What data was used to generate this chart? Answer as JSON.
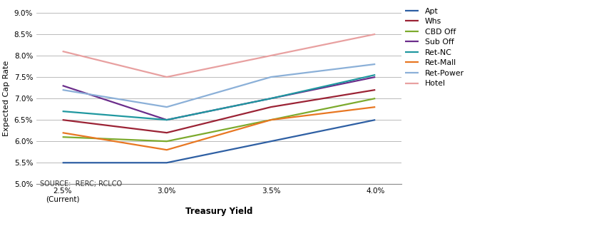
{
  "x_labels": [
    "2.5%\n(Current)",
    "3.0%",
    "3.5%",
    "4.0%"
  ],
  "x_values": [
    0,
    1,
    2,
    3
  ],
  "series": [
    {
      "name": "Apt",
      "color": "#2E5FA3",
      "values": [
        0.055,
        0.055,
        0.06,
        0.065
      ]
    },
    {
      "name": "Whs",
      "color": "#9B2335",
      "values": [
        0.065,
        0.062,
        0.068,
        0.072
      ]
    },
    {
      "name": "CBD Off",
      "color": "#7CAA2D",
      "values": [
        0.061,
        0.06,
        0.065,
        0.07
      ]
    },
    {
      "name": "Sub Off",
      "color": "#6B2D8B",
      "values": [
        0.073,
        0.065,
        0.07,
        0.075
      ]
    },
    {
      "name": "Ret-NC",
      "color": "#2098A0",
      "values": [
        0.067,
        0.065,
        0.07,
        0.0755
      ]
    },
    {
      "name": "Ret-Mall",
      "color": "#E87722",
      "values": [
        0.062,
        0.058,
        0.065,
        0.068
      ]
    },
    {
      "name": "Ret-Power",
      "color": "#8BB0D8",
      "values": [
        0.072,
        0.068,
        0.075,
        0.078
      ]
    },
    {
      "name": "Hotel",
      "color": "#E8A0A0",
      "values": [
        0.081,
        0.075,
        0.08,
        0.085
      ]
    }
  ],
  "ylabel": "Expected Cap Rate",
  "xlabel": "Treasury Yield",
  "ylim": [
    0.05,
    0.09
  ],
  "yticks": [
    0.05,
    0.055,
    0.06,
    0.065,
    0.07,
    0.075,
    0.08,
    0.085,
    0.09
  ],
  "source_text": "SOURCE:  RERC; RCLCO",
  "background_color": "#ffffff",
  "line_width": 1.6
}
